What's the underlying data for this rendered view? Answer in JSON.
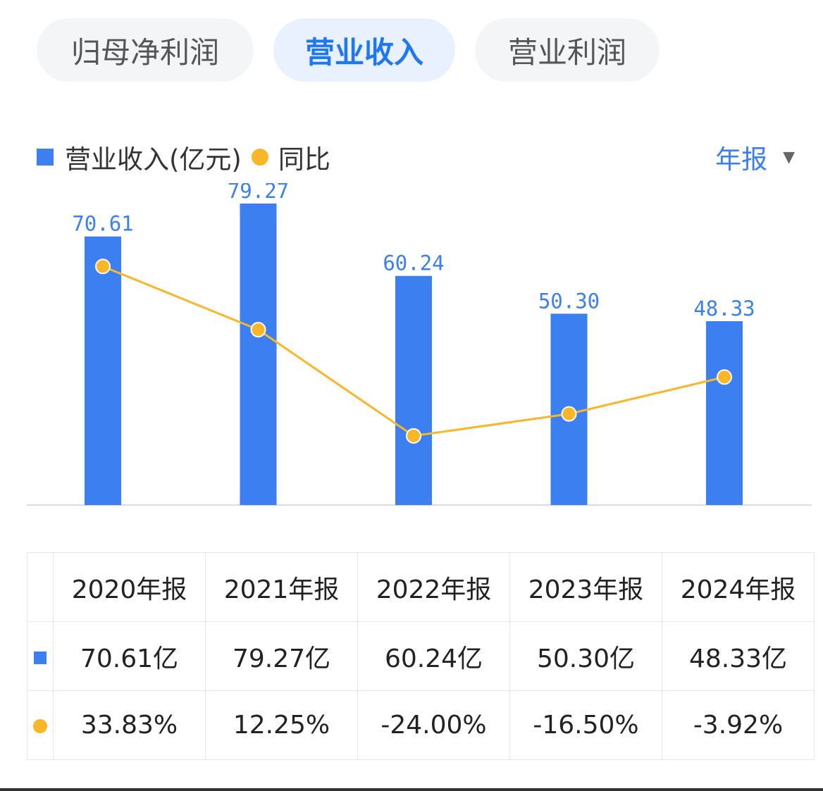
{
  "tabs": [
    {
      "label": "归母净利润",
      "active": false
    },
    {
      "label": "营业收入",
      "active": true
    },
    {
      "label": "营业利润",
      "active": false
    }
  ],
  "legend": {
    "series1": "营业收入(亿元)",
    "series2": "同比"
  },
  "period_selector": {
    "label": "年报",
    "caret": "▼"
  },
  "colors": {
    "bar": "#3b7ff0",
    "line": "#f9b628",
    "positive": "#e0403f",
    "negative": "#1a9a55",
    "active_tab": "#1f78f0"
  },
  "chart_data": {
    "type": "bar",
    "categories": [
      "2020年报",
      "2021年报",
      "2022年报",
      "2023年报",
      "2024年报"
    ],
    "series": [
      {
        "name": "营业收入(亿元)",
        "type": "bar",
        "values": [
          70.61,
          79.27,
          60.24,
          50.3,
          48.33
        ],
        "labels": [
          "70.61",
          "79.27",
          "60.24",
          "50.30",
          "48.33"
        ]
      },
      {
        "name": "同比",
        "type": "line",
        "values": [
          33.83,
          12.25,
          -24.0,
          -16.5,
          -3.92
        ]
      }
    ]
  },
  "table": {
    "headers": [
      "2020年报",
      "2021年报",
      "2022年报",
      "2023年报",
      "2024年报"
    ],
    "revenue_row": [
      "70.61亿",
      "79.27亿",
      "60.24亿",
      "50.30亿",
      "48.33亿"
    ],
    "yoy_row": [
      "33.83%",
      "12.25%",
      "-24.00%",
      "-16.50%",
      "-3.92%"
    ]
  }
}
